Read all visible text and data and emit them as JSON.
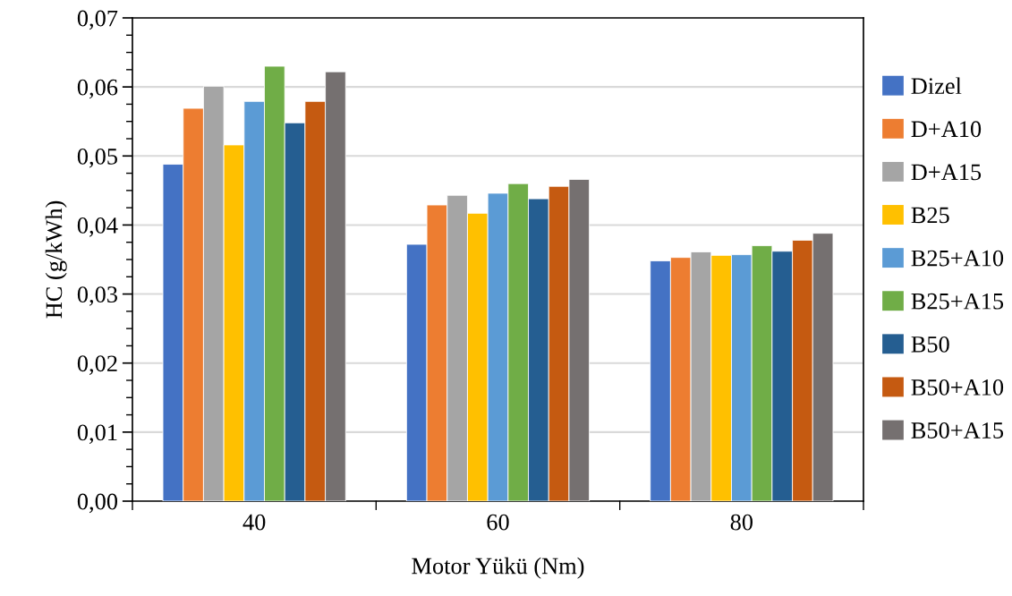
{
  "chart_data": {
    "type": "bar",
    "xlabel": "Motor Yükü (Nm)",
    "ylabel": "HC (g/kWh)",
    "categories": [
      "40",
      "60",
      "80"
    ],
    "series": [
      {
        "name": "Dizel",
        "color": "#4472c4",
        "values": [
          0.0488,
          0.0372,
          0.0348
        ]
      },
      {
        "name": "D+A10",
        "color": "#ed7d31",
        "values": [
          0.0569,
          0.0429,
          0.0353
        ]
      },
      {
        "name": "D+A15",
        "color": "#a5a5a5",
        "values": [
          0.0601,
          0.0443,
          0.0361
        ]
      },
      {
        "name": "B25",
        "color": "#ffc000",
        "values": [
          0.0516,
          0.0417,
          0.0356
        ]
      },
      {
        "name": "B25+A10",
        "color": "#5b9bd5",
        "values": [
          0.0579,
          0.0446,
          0.0357
        ]
      },
      {
        "name": "B25+A15",
        "color": "#70ad47",
        "values": [
          0.063,
          0.046,
          0.037
        ]
      },
      {
        "name": "B50",
        "color": "#255e91",
        "values": [
          0.0548,
          0.0438,
          0.0362
        ]
      },
      {
        "name": "B50+A10",
        "color": "#c55a11",
        "values": [
          0.0579,
          0.0456,
          0.0378
        ]
      },
      {
        "name": "B50+A15",
        "color": "#757070",
        "values": [
          0.0622,
          0.0466,
          0.0388
        ]
      }
    ],
    "ylim": [
      0,
      0.07
    ],
    "yticks": [
      {
        "value": 0,
        "label": "0,00"
      },
      {
        "value": 0.0025,
        "label": null
      },
      {
        "value": 0.005,
        "label": null
      },
      {
        "value": 0.0075,
        "label": null
      },
      {
        "value": 0.01,
        "label": "0,01"
      },
      {
        "value": 0.0125,
        "label": null
      },
      {
        "value": 0.015,
        "label": null
      },
      {
        "value": 0.0175,
        "label": null
      },
      {
        "value": 0.02,
        "label": "0,02"
      },
      {
        "value": 0.0225,
        "label": null
      },
      {
        "value": 0.025,
        "label": null
      },
      {
        "value": 0.0275,
        "label": null
      },
      {
        "value": 0.03,
        "label": "0,03"
      },
      {
        "value": 0.0325,
        "label": null
      },
      {
        "value": 0.035,
        "label": null
      },
      {
        "value": 0.0375,
        "label": null
      },
      {
        "value": 0.04,
        "label": "0,04"
      },
      {
        "value": 0.0425,
        "label": null
      },
      {
        "value": 0.045,
        "label": null
      },
      {
        "value": 0.0475,
        "label": null
      },
      {
        "value": 0.05,
        "label": "0,05"
      },
      {
        "value": 0.0525,
        "label": null
      },
      {
        "value": 0.055,
        "label": null
      },
      {
        "value": 0.0575,
        "label": null
      },
      {
        "value": 0.06,
        "label": "0,06"
      },
      {
        "value": 0.0625,
        "label": null
      },
      {
        "value": 0.065,
        "label": null
      },
      {
        "value": 0.0675,
        "label": null
      },
      {
        "value": 0.07,
        "label": "0,07"
      }
    ],
    "grid": "y",
    "legend": "right"
  }
}
